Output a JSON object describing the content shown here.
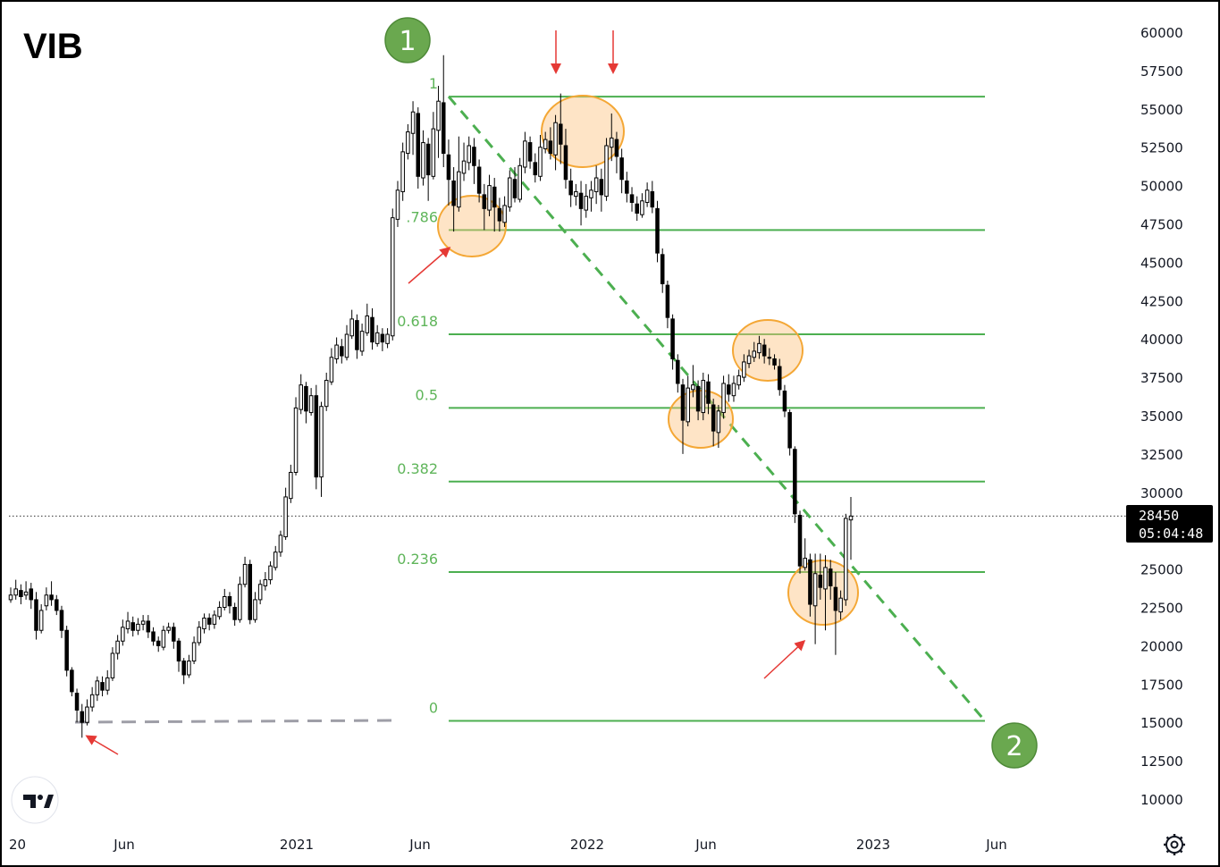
{
  "ticker": "VIB",
  "chart_data": {
    "type": "candlestick",
    "title": "VIB",
    "x_labels": [
      "20",
      "Jun",
      "2021",
      "Jun",
      "2022",
      "Jun",
      "2023",
      "Jun"
    ],
    "y_ticks": [
      60000,
      57500,
      55000,
      52500,
      50000,
      47500,
      45000,
      42500,
      40000,
      37500,
      35000,
      32500,
      30000,
      25000,
      22500,
      20000,
      17500,
      15000,
      12500,
      10000
    ],
    "ylim": [
      9000,
      61500
    ],
    "last_price": "28450",
    "countdown": "05:04:48",
    "fib_levels": [
      {
        "label": "1",
        "price": 55800
      },
      {
        "label": ".786",
        "price": 47100
      },
      {
        "label": "0.618",
        "price": 40300
      },
      {
        "label": "0.5",
        "price": 35500
      },
      {
        "label": "0.382",
        "price": 30700
      },
      {
        "label": "0.236",
        "price": 24800
      },
      {
        "label": "0",
        "price": 15100
      }
    ],
    "markers": [
      "1",
      "2"
    ],
    "candles": [
      [
        23000,
        23300,
        22800,
        23800
      ],
      [
        23300,
        23700,
        23000,
        24300
      ],
      [
        23600,
        23200,
        22700,
        24000
      ],
      [
        23300,
        23500,
        23000,
        24200
      ],
      [
        23700,
        23000,
        22400,
        24100
      ],
      [
        23000,
        21000,
        20400,
        23500
      ],
      [
        21000,
        22300,
        20800,
        22700
      ],
      [
        22600,
        23300,
        22300,
        23800
      ],
      [
        23300,
        23000,
        22600,
        24200
      ],
      [
        23000,
        22300,
        22000,
        23300
      ],
      [
        22300,
        21000,
        20500,
        22600
      ],
      [
        21000,
        18400,
        18000,
        21300
      ],
      [
        18400,
        17000,
        16700,
        18600
      ],
      [
        16900,
        15800,
        15000,
        17200
      ],
      [
        15700,
        15000,
        14000,
        16200
      ],
      [
        15000,
        16000,
        14800,
        16500
      ],
      [
        16000,
        16800,
        15700,
        17300
      ],
      [
        16800,
        17700,
        16400,
        18000
      ],
      [
        17600,
        17100,
        16700,
        18000
      ],
      [
        17100,
        17900,
        16800,
        18400
      ],
      [
        17900,
        19500,
        17700,
        19900
      ],
      [
        19500,
        20300,
        19100,
        20700
      ],
      [
        20300,
        21200,
        20000,
        21700
      ],
      [
        21100,
        21600,
        20800,
        22200
      ],
      [
        21500,
        21000,
        20600,
        21900
      ],
      [
        21000,
        21400,
        20700,
        21800
      ],
      [
        21400,
        21600,
        21000,
        22000
      ],
      [
        21600,
        20900,
        20500,
        22000
      ],
      [
        20900,
        20300,
        20000,
        21200
      ],
      [
        20300,
        20000,
        19600,
        20600
      ],
      [
        19900,
        21000,
        19700,
        21300
      ],
      [
        21000,
        21200,
        20800,
        21500
      ],
      [
        21200,
        20300,
        19800,
        21500
      ],
      [
        20300,
        19000,
        18300,
        20500
      ],
      [
        19000,
        18100,
        17500,
        19200
      ],
      [
        18100,
        19000,
        17900,
        19400
      ],
      [
        19000,
        20200,
        18800,
        20600
      ],
      [
        20200,
        21200,
        20000,
        21600
      ],
      [
        21100,
        21800,
        20800,
        22100
      ],
      [
        21800,
        21400,
        21000,
        22100
      ],
      [
        21400,
        22000,
        21100,
        22300
      ],
      [
        21900,
        22500,
        21700,
        22900
      ],
      [
        22500,
        23200,
        22300,
        23700
      ],
      [
        23200,
        22600,
        22100,
        23500
      ],
      [
        22500,
        21700,
        21300,
        22800
      ],
      [
        21700,
        24000,
        21500,
        24500
      ],
      [
        24000,
        25300,
        23800,
        25800
      ],
      [
        25300,
        21700,
        21400,
        25600
      ],
      [
        21700,
        23000,
        21500,
        23500
      ],
      [
        23000,
        24000,
        22700,
        24300
      ],
      [
        23900,
        24300,
        23600,
        24800
      ],
      [
        24300,
        25200,
        24000,
        25500
      ],
      [
        25100,
        26100,
        24900,
        26500
      ],
      [
        26100,
        27200,
        25800,
        27500
      ],
      [
        27100,
        29700,
        26900,
        30300
      ],
      [
        29600,
        31300,
        29300,
        31800
      ],
      [
        31300,
        35500,
        31100,
        36200
      ],
      [
        35400,
        37000,
        35100,
        37700
      ],
      [
        36900,
        35300,
        34500,
        37200
      ],
      [
        35200,
        36300,
        35000,
        36800
      ],
      [
        36300,
        31000,
        30200,
        37000
      ],
      [
        31000,
        35600,
        29700,
        35900
      ],
      [
        35600,
        37300,
        35300,
        37800
      ],
      [
        37200,
        38800,
        37000,
        39400
      ],
      [
        38700,
        39600,
        38400,
        40100
      ],
      [
        39500,
        38900,
        38400,
        40000
      ],
      [
        38800,
        40300,
        38600,
        40900
      ],
      [
        40200,
        41300,
        40000,
        41900
      ],
      [
        41200,
        39300,
        38700,
        41600
      ],
      [
        39200,
        40500,
        38900,
        41000
      ],
      [
        40400,
        41500,
        40200,
        42300
      ],
      [
        41400,
        39800,
        39300,
        42000
      ],
      [
        39700,
        40400,
        39500,
        40900
      ],
      [
        40300,
        39800,
        39200,
        40700
      ],
      [
        39700,
        40300,
        39400,
        40700
      ],
      [
        40200,
        47900,
        39900,
        48500
      ],
      [
        47800,
        49700,
        47300,
        50300
      ],
      [
        49600,
        52200,
        49000,
        52800
      ],
      [
        52100,
        53500,
        51700,
        54000
      ],
      [
        53400,
        54800,
        52000,
        55500
      ],
      [
        54700,
        50600,
        49800,
        55100
      ],
      [
        50500,
        52800,
        50000,
        53600
      ],
      [
        52700,
        50700,
        49000,
        53100
      ],
      [
        50600,
        53700,
        50400,
        54800
      ],
      [
        53600,
        55500,
        51800,
        56500
      ],
      [
        55400,
        52100,
        51200,
        58500
      ],
      [
        52000,
        50400,
        48700,
        53000
      ],
      [
        50300,
        48700,
        47000,
        51200
      ],
      [
        48600,
        50900,
        48300,
        53200
      ],
      [
        50800,
        51600,
        50300,
        52800
      ],
      [
        51500,
        52600,
        51000,
        53200
      ],
      [
        52500,
        51300,
        50100,
        53100
      ],
      [
        51200,
        49500,
        48900,
        51700
      ],
      [
        49400,
        48500,
        47100,
        50100
      ],
      [
        48400,
        50000,
        48000,
        50700
      ],
      [
        49900,
        48600,
        47000,
        50500
      ],
      [
        48500,
        47700,
        47000,
        49200
      ],
      [
        47600,
        48700,
        47300,
        49300
      ],
      [
        48600,
        50500,
        48300,
        51000
      ],
      [
        50400,
        49200,
        48900,
        51200
      ],
      [
        49100,
        51300,
        48900,
        51800
      ],
      [
        51200,
        52900,
        50800,
        53500
      ],
      [
        52800,
        51600,
        51100,
        53200
      ],
      [
        51500,
        50700,
        50200,
        52100
      ],
      [
        50600,
        52500,
        50300,
        53300
      ],
      [
        52400,
        53000,
        52100,
        53500
      ],
      [
        52900,
        52100,
        51700,
        53800
      ],
      [
        52000,
        54100,
        51000,
        54600
      ],
      [
        54000,
        52700,
        51400,
        56000
      ],
      [
        52600,
        50400,
        49800,
        53700
      ],
      [
        50300,
        49400,
        48600,
        51100
      ],
      [
        49300,
        49600,
        48700,
        50100
      ],
      [
        49500,
        48500,
        47400,
        50300
      ],
      [
        48400,
        49300,
        47900,
        50100
      ],
      [
        49200,
        49700,
        48300,
        50300
      ],
      [
        49600,
        50500,
        48800,
        51300
      ],
      [
        50400,
        49400,
        48300,
        51100
      ],
      [
        49300,
        52600,
        49000,
        53100
      ],
      [
        52500,
        53100,
        51600,
        54700
      ],
      [
        53000,
        51900,
        50800,
        53500
      ],
      [
        51800,
        50400,
        49500,
        52400
      ],
      [
        50300,
        49500,
        48900,
        50900
      ],
      [
        49400,
        48900,
        48300,
        49900
      ],
      [
        48800,
        48200,
        47700,
        49300
      ],
      [
        48100,
        49000,
        47900,
        49500
      ],
      [
        48900,
        49700,
        48600,
        50200
      ],
      [
        49600,
        48600,
        48200,
        50300
      ],
      [
        48500,
        45600,
        45000,
        49000
      ],
      [
        45500,
        43600,
        43000,
        45900
      ],
      [
        43500,
        41400,
        40700,
        43800
      ],
      [
        41300,
        38700,
        38000,
        41600
      ],
      [
        38600,
        37100,
        36500,
        39000
      ],
      [
        37000,
        34700,
        32500,
        37400
      ],
      [
        34600,
        36800,
        34300,
        37600
      ],
      [
        36700,
        37000,
        36200,
        38300
      ],
      [
        36900,
        35300,
        34700,
        37300
      ],
      [
        35200,
        37300,
        34700,
        37800
      ],
      [
        37200,
        35800,
        35100,
        37700
      ],
      [
        35700,
        34000,
        33000,
        36100
      ],
      [
        33900,
        35300,
        32900,
        35700
      ],
      [
        35200,
        37100,
        34800,
        37600
      ],
      [
        37000,
        36400,
        35900,
        37700
      ],
      [
        36300,
        37100,
        35900,
        37600
      ],
      [
        37000,
        37600,
        36700,
        38000
      ],
      [
        37500,
        38500,
        37200,
        39000
      ],
      [
        38400,
        38900,
        38100,
        39300
      ],
      [
        38800,
        39200,
        38500,
        39800
      ],
      [
        39100,
        39700,
        38700,
        40200
      ],
      [
        39600,
        38900,
        38400,
        40000
      ],
      [
        38800,
        38800,
        38300,
        39400
      ],
      [
        38700,
        38300,
        38000,
        39000
      ],
      [
        38200,
        36700,
        36300,
        38700
      ],
      [
        36600,
        35300,
        34900,
        37000
      ],
      [
        35200,
        32900,
        32400,
        35400
      ],
      [
        32800,
        28600,
        28000,
        33000
      ],
      [
        28500,
        25200,
        24700,
        28800
      ],
      [
        25100,
        25700,
        24900,
        27000
      ],
      [
        25600,
        22700,
        21900,
        26000
      ],
      [
        22600,
        24700,
        20100,
        26000
      ],
      [
        24600,
        23800,
        23000,
        26000
      ],
      [
        23700,
        25100,
        21000,
        25900
      ],
      [
        25000,
        23900,
        23000,
        25600
      ],
      [
        23800,
        22300,
        19400,
        24800
      ],
      [
        22200,
        23100,
        21700,
        23600
      ],
      [
        23000,
        28300,
        22600,
        28600
      ],
      [
        28200,
        28450,
        25600,
        29700
      ]
    ]
  }
}
